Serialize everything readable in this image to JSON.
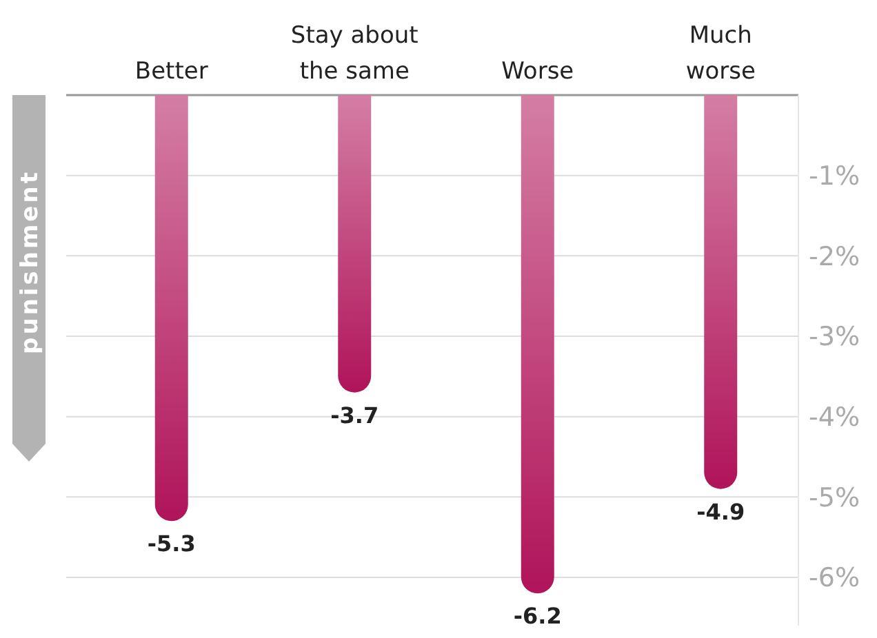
{
  "chart_data": {
    "type": "bar",
    "ylabel": "punishment",
    "categories": [
      "Better",
      "Stay about\nthe same",
      "Worse",
      "Much\nworse"
    ],
    "values": [
      -5.3,
      -3.7,
      -6.2,
      -4.9
    ],
    "color": "#b0145a",
    "data_labels": true,
    "ylim": [
      -6.6,
      0
    ],
    "yticks": [
      {
        "value": 0,
        "label": null
      },
      {
        "value": -1,
        "label": "-1%"
      },
      {
        "value": -2,
        "label": "-2%"
      },
      {
        "value": -3,
        "label": "-3%"
      },
      {
        "value": -4,
        "label": "-4%"
      },
      {
        "value": -5,
        "label": "-5%"
      },
      {
        "value": -6,
        "label": "-6%"
      }
    ],
    "grid": "y"
  }
}
